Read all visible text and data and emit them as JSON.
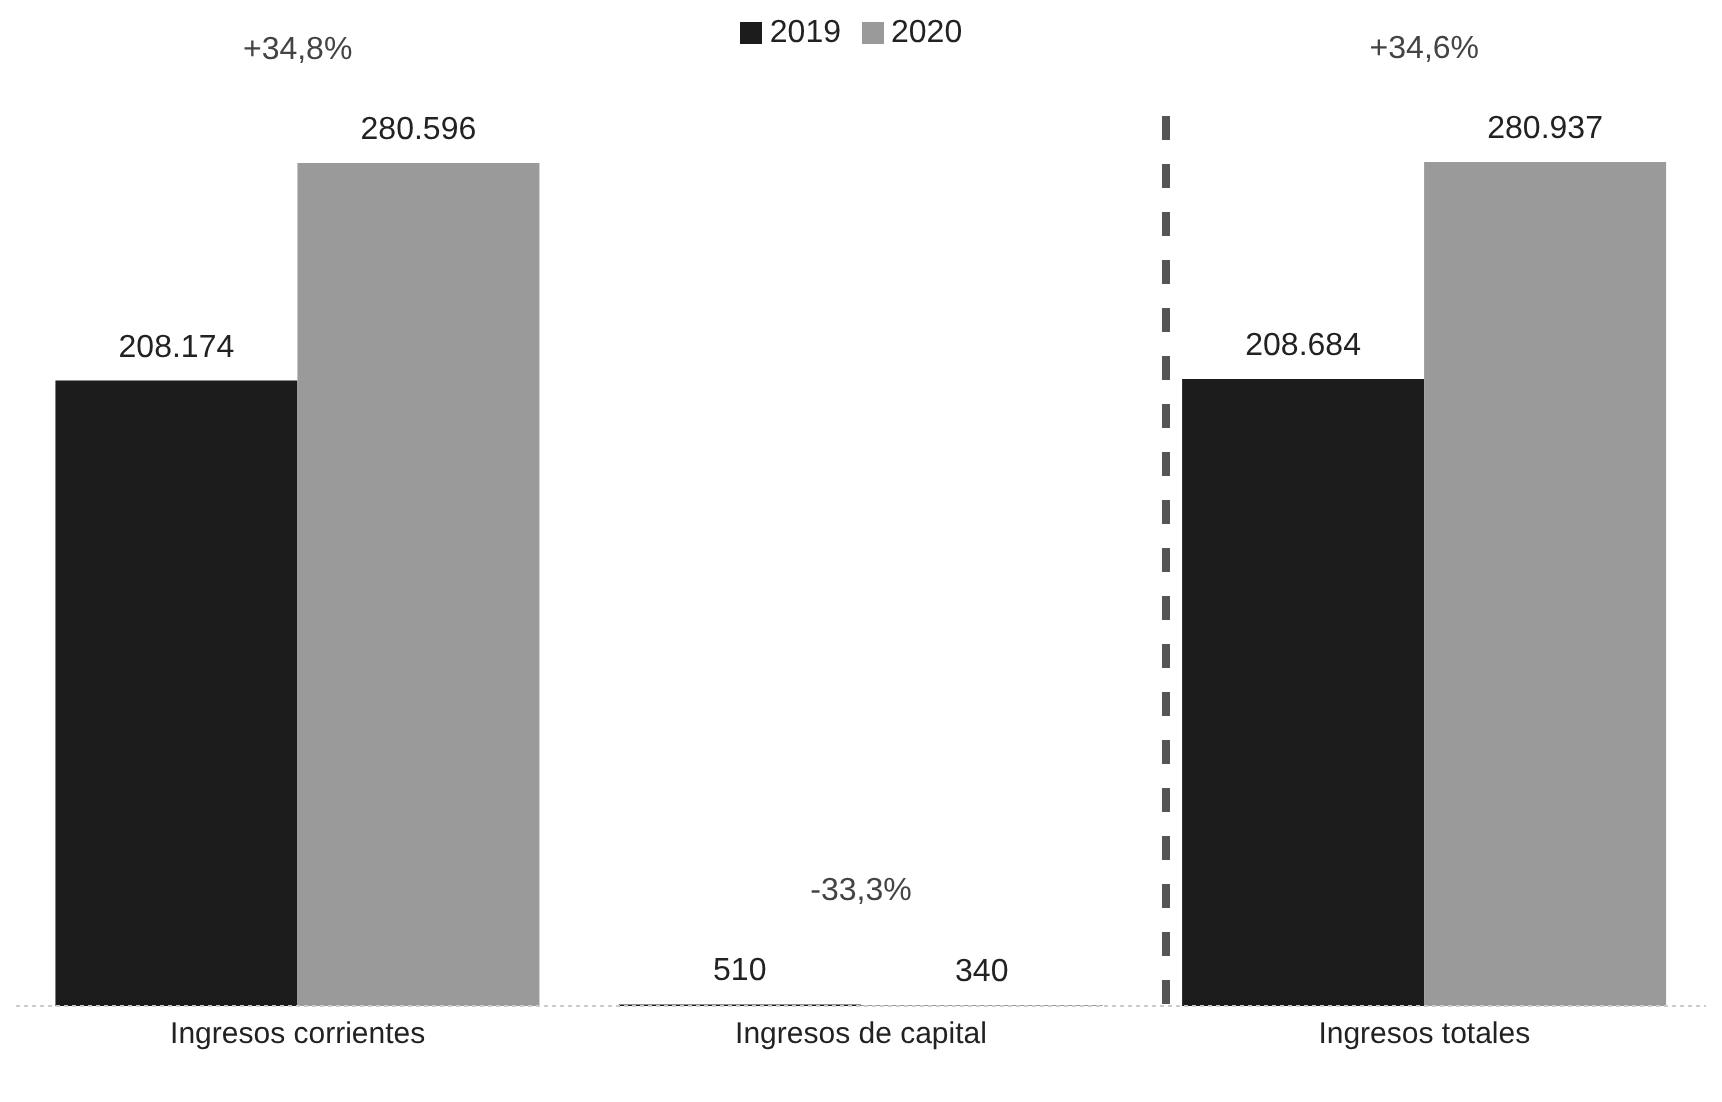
{
  "chart_data": {
    "type": "bar",
    "categories": [
      "Ingresos corrientes",
      "Ingresos de capital",
      "Ingresos totales"
    ],
    "series": [
      {
        "name": "2019",
        "color": "#1c1c1c",
        "values": [
          208174,
          510,
          208684
        ],
        "value_labels": [
          "208.174",
          "510",
          "208.684"
        ]
      },
      {
        "name": "2020",
        "color": "#9a9a9a",
        "values": [
          280596,
          340,
          280937
        ],
        "value_labels": [
          "280.596",
          "340",
          "280.937"
        ]
      }
    ],
    "annotations": [
      "+34,8%",
      "-33,3%",
      "+34,6%"
    ],
    "legend": "top",
    "tick_labels": "x"
  }
}
